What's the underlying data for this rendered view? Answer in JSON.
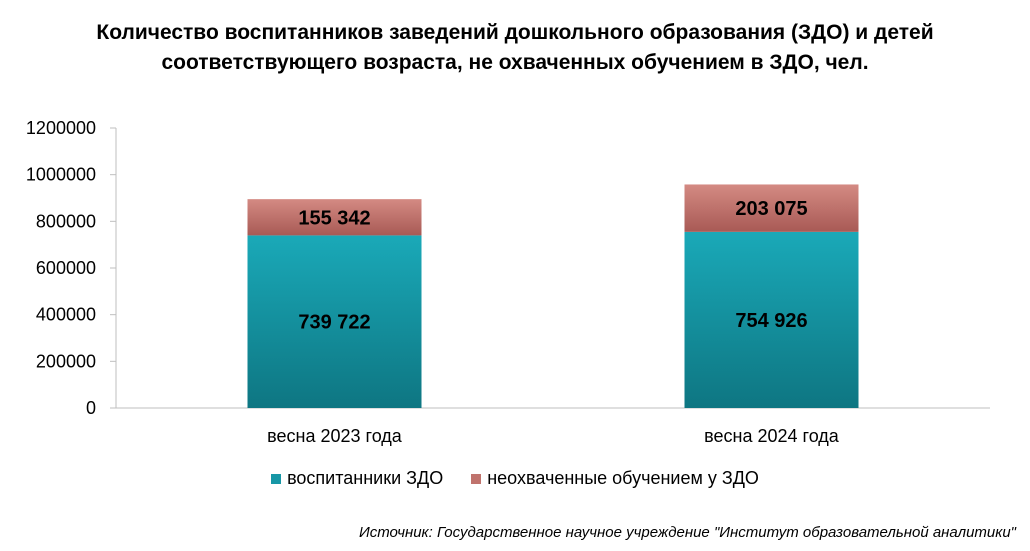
{
  "title_line1": "Количество воспитанников заведений дошкольного образования (ЗДО) и детей",
  "title_line2": "соответствующего возраста, не охваченных обучением в ЗДО, чел.",
  "source": "Источник: Государственное научное учреждение \"Институт образовательной аналитики\"",
  "colors": {
    "enrolled": "#1797a6",
    "not_covered": "#c0736d"
  },
  "chart_data": {
    "type": "bar",
    "stacked": true,
    "categories": [
      "весна 2023 года",
      "весна 2024 года"
    ],
    "series": [
      {
        "name": "воспитанники ЗДО",
        "values": [
          739722,
          754926
        ],
        "labels": [
          "739 722",
          "754 926"
        ]
      },
      {
        "name": "неохваченные обучением у ЗДО",
        "values": [
          155342,
          203075
        ],
        "labels": [
          "155 342",
          "203 075"
        ]
      }
    ],
    "ylim": [
      0,
      1200000
    ],
    "yticks": [
      "0",
      "200000",
      "400000",
      "600000",
      "800000",
      "1000000",
      "1200000"
    ],
    "grid": false,
    "legend": "bottom"
  }
}
